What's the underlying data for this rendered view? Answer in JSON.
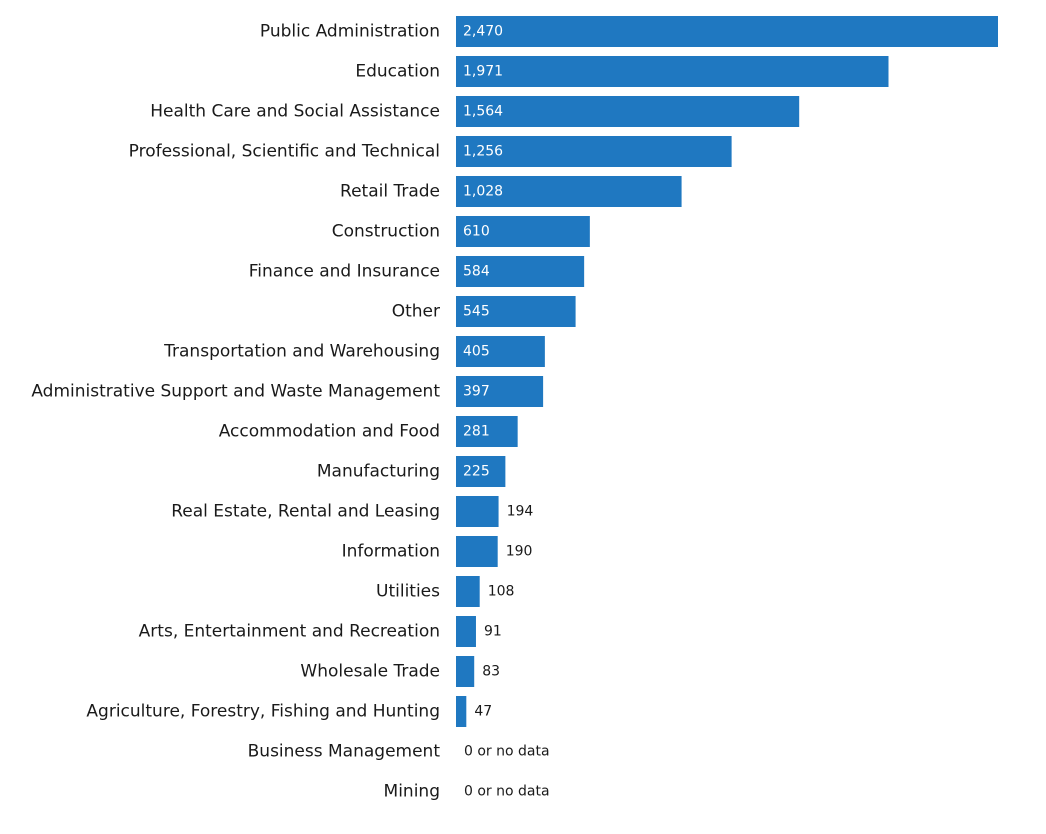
{
  "chart_data": {
    "type": "bar",
    "orientation": "horizontal",
    "title": "",
    "xlabel": "",
    "ylabel": "",
    "grid": false,
    "legend": "none",
    "bar_color": "#1f78c1",
    "inside_label_color": "#ffffff",
    "outside_label_color": "#1a1a1a",
    "xlim": [
      0,
      2470
    ],
    "categories": [
      "Public Administration",
      "Education",
      "Health Care and Social Assistance",
      "Professional, Scientific and Technical",
      "Retail Trade",
      "Construction",
      "Finance and Insurance",
      "Other",
      "Transportation and Warehousing",
      "Administrative Support and Waste Management",
      "Accommodation and Food",
      "Manufacturing",
      "Real Estate, Rental and Leasing",
      "Information",
      "Utilities",
      "Arts, Entertainment and Recreation",
      "Wholesale Trade",
      "Agriculture, Forestry, Fishing and Hunting",
      "Business Management",
      "Mining"
    ],
    "values": [
      2470,
      1971,
      1564,
      1256,
      1028,
      610,
      584,
      545,
      405,
      397,
      281,
      225,
      194,
      190,
      108,
      91,
      83,
      47,
      null,
      null
    ],
    "data_labels": [
      "2,470",
      "1,971",
      "1,564",
      "1,256",
      "1,028",
      "610",
      "584",
      "545",
      "405",
      "397",
      "281",
      "225",
      "194",
      "190",
      "108",
      "91",
      "83",
      "47",
      "0 or no data",
      "0 or no data"
    ]
  }
}
